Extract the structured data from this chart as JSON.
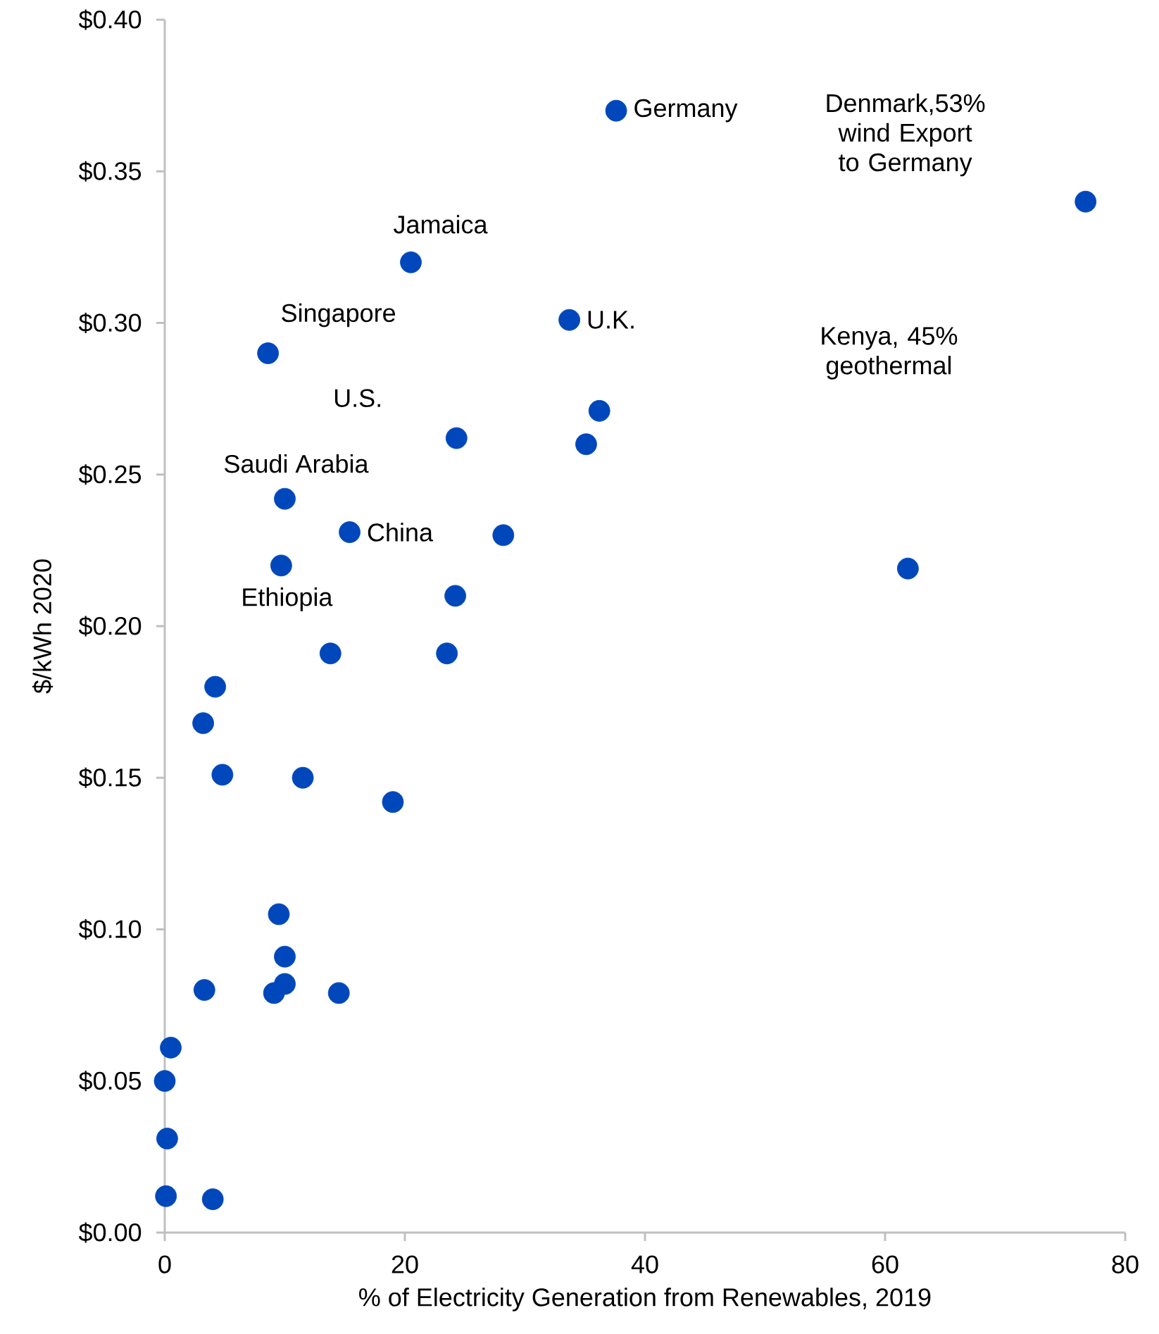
{
  "chart_data": {
    "type": "scatter",
    "xlabel": "% of Electricity Generation from Renewables, 2019",
    "ylabel": "$/kWh 2020",
    "x": [
      37.6,
      76.7,
      20.5,
      33.7,
      8.6,
      36.2,
      24.3,
      35.1,
      10.0,
      15.4,
      28.2,
      9.7,
      61.9,
      24.2,
      13.8,
      23.5,
      4.2,
      3.2,
      4.8,
      11.5,
      19.0,
      9.5,
      10.0,
      10.0,
      3.3,
      9.1,
      14.5,
      0.5,
      0.0,
      0.2,
      0.1,
      4.0
    ],
    "values": [
      0.37,
      0.34,
      0.32,
      0.301,
      0.29,
      0.271,
      0.262,
      0.26,
      0.242,
      0.231,
      0.23,
      0.22,
      0.219,
      0.21,
      0.191,
      0.191,
      0.18,
      0.168,
      0.151,
      0.15,
      0.142,
      0.105,
      0.091,
      0.082,
      0.08,
      0.079,
      0.079,
      0.061,
      0.05,
      0.031,
      0.012,
      0.011
    ],
    "color": "#0047bb",
    "marker": "circle",
    "xlim": [
      0,
      80
    ],
    "ylim": [
      0,
      0.4
    ],
    "xticks": [
      0,
      20,
      40,
      60,
      80
    ],
    "yticks": [
      {
        "value": 0,
        "label": "$0.00"
      },
      {
        "value": 0.05,
        "label": "$0.05"
      },
      {
        "value": 0.1,
        "label": "$0.10"
      },
      {
        "value": 0.15,
        "label": "$0.15"
      },
      {
        "value": 0.2,
        "label": "$0.20"
      },
      {
        "value": 0.25,
        "label": "$0.25"
      },
      {
        "value": 0.3,
        "label": "$0.30"
      },
      {
        "value": 0.35,
        "label": "$0.35"
      },
      {
        "value": 0.4,
        "label": "$0.40"
      }
    ],
    "grid": false,
    "annotations": [
      {
        "text": "Germany",
        "x": 37.6,
        "y": 0.37
      },
      "Denmark,53% wind Export to Germany",
      {
        "text": "Jamaica",
        "x": 20.5,
        "y": 0.32
      },
      {
        "text": "U.K.",
        "x": 33.7,
        "y": 0.301
      },
      {
        "text": "Singapore",
        "x": 8.6,
        "y": 0.29
      },
      "Kenya, 45% geothermal",
      "U.S.",
      {
        "text": "Saudi Arabia",
        "x": 10.0,
        "y": 0.242
      },
      {
        "text": "China",
        "x": 15.4,
        "y": 0.231
      },
      {
        "text": "Ethiopia",
        "x": 9.7,
        "y": 0.22
      }
    ]
  }
}
